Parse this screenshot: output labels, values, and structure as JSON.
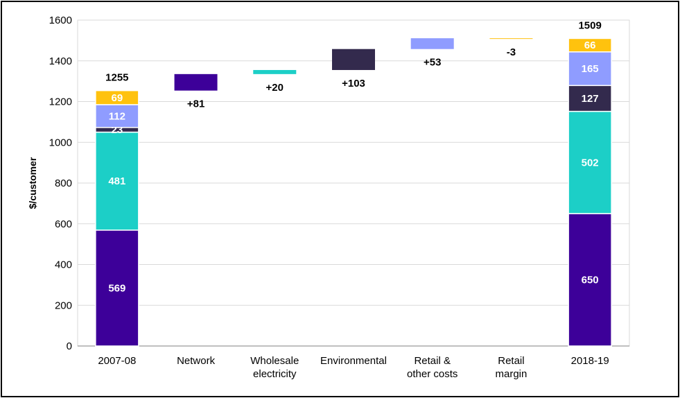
{
  "chart_data": {
    "type": "bar",
    "subtype": "waterfall-stacked",
    "title": "",
    "xlabel": "",
    "ylabel": "$/customer",
    "ylim": [
      0,
      1600
    ],
    "yticks": [
      0,
      200,
      400,
      600,
      800,
      1000,
      1200,
      1400,
      1600
    ],
    "grid": true,
    "legend": "none",
    "categories": [
      "2007-08",
      "Network",
      "Wholesale\nelectricity",
      "Environmental",
      "Retail &\nother costs",
      "Retail\nmargin",
      "2018-19"
    ],
    "components": [
      {
        "key": "network",
        "color": "#3d0099"
      },
      {
        "key": "wholesale",
        "color": "#1ccfc7"
      },
      {
        "key": "environmental",
        "color": "#332a4d"
      },
      {
        "key": "retail_costs",
        "color": "#8f9cff"
      },
      {
        "key": "retail_margin",
        "color": "#ffc20e"
      }
    ],
    "start": {
      "category": "2007-08",
      "segments": [
        569,
        481,
        23,
        112,
        69
      ],
      "labels": [
        "569",
        "481",
        "23",
        "112",
        "69"
      ],
      "total": "1255"
    },
    "steps": [
      {
        "category": "Network",
        "component": "network",
        "delta": 81,
        "label": "+81"
      },
      {
        "category": "Wholesale\nelectricity",
        "component": "wholesale",
        "delta": 20,
        "label": "+20"
      },
      {
        "category": "Environmental",
        "component": "environmental",
        "delta": 103,
        "label": "+103"
      },
      {
        "category": "Retail &\nother costs",
        "component": "retail_costs",
        "delta": 53,
        "label": "+53"
      },
      {
        "category": "Retail\nmargin",
        "component": "retail_margin",
        "delta": -3,
        "label": "-3"
      }
    ],
    "end": {
      "category": "2018-19",
      "segments": [
        650,
        502,
        127,
        165,
        66
      ],
      "labels": [
        "650",
        "502",
        "127",
        "165",
        "66"
      ],
      "total": "1509"
    }
  }
}
